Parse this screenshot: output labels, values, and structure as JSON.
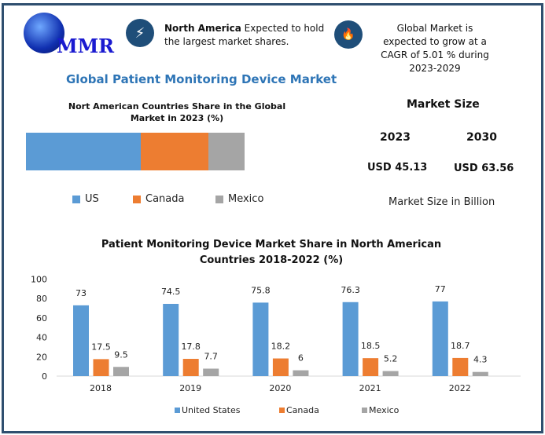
{
  "header": {
    "logo_text": "MMR",
    "fact1_bold": "North America",
    "fact1_rest": " Expected to hold the largest market shares.",
    "fact2": "Global Market is expected to grow at a CAGR of 5.01 % during 2023-2029"
  },
  "page_title": "Global Patient Monitoring Device Market",
  "market_size": {
    "title": "Market Size",
    "years": [
      "2023",
      "2030"
    ],
    "values": [
      "USD 45.13",
      "USD 63.56"
    ],
    "note": "Market Size in Billion"
  },
  "colors": {
    "us": "#5b9bd5",
    "canada": "#ed7d31",
    "mexico": "#a5a5a5",
    "accent": "#1f4e79"
  },
  "chart_data": [
    {
      "type": "bar",
      "stacked": true,
      "title": "Nort American Countries Share in the Global Market in 2023 (%)",
      "categories": [
        "US",
        "Canada",
        "Mexico"
      ],
      "values": [
        52.5,
        31,
        16.5
      ],
      "legend": "bottom"
    },
    {
      "type": "bar",
      "title": "Patient Monitoring Device Market Share in North American Countries 2018-2022 (%)",
      "categories": [
        "2018",
        "2019",
        "2020",
        "2021",
        "2022"
      ],
      "series": [
        {
          "name": "United States",
          "values": [
            73,
            74.5,
            75.8,
            76.3,
            77
          ]
        },
        {
          "name": "Canada",
          "values": [
            17.5,
            17.8,
            18.2,
            18.5,
            18.7
          ]
        },
        {
          "name": "Mexico",
          "values": [
            9.5,
            7.7,
            6,
            5.2,
            4.3
          ]
        }
      ],
      "ylim": [
        0,
        100
      ],
      "yticks": [
        "0",
        "20",
        "40",
        "60",
        "80",
        "100"
      ],
      "legend": "bottom"
    }
  ]
}
